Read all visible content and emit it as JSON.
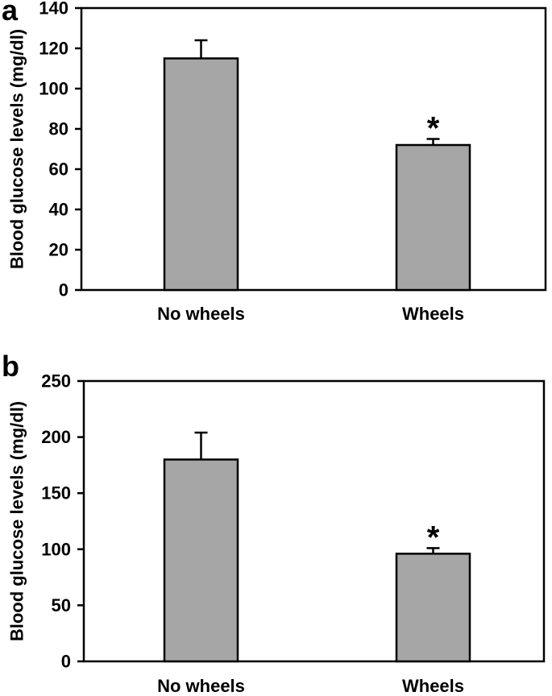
{
  "figure": {
    "background": "#ffffff",
    "panels": [
      {
        "label": "a"
      },
      {
        "label": "b"
      }
    ]
  },
  "chart_data": [
    {
      "type": "bar",
      "panel": "a",
      "title": "",
      "xlabel": "",
      "ylabel": "Blood glucose levels (mg/dl)",
      "categories": [
        "No wheels",
        "Wheels"
      ],
      "values": [
        115,
        72
      ],
      "errors_plus": [
        9,
        3
      ],
      "significance": [
        "",
        "*"
      ],
      "ylim": [
        0,
        140
      ],
      "yticks": [
        0,
        20,
        40,
        60,
        80,
        100,
        120,
        140
      ],
      "grid": false,
      "legend": false,
      "bar_fill": "#a6a6a6",
      "bar_border": "#000000",
      "axis_color": "#000000"
    },
    {
      "type": "bar",
      "panel": "b",
      "title": "",
      "xlabel": "",
      "ylabel": "Blood glucose levels (mg/dl)",
      "categories": [
        "No wheels",
        "Wheels"
      ],
      "values": [
        180,
        96
      ],
      "errors_plus": [
        24,
        5
      ],
      "significance": [
        "",
        "*"
      ],
      "ylim": [
        0,
        250
      ],
      "yticks": [
        0,
        50,
        100,
        150,
        200,
        250
      ],
      "grid": false,
      "legend": false,
      "bar_fill": "#a6a6a6",
      "bar_border": "#000000",
      "axis_color": "#000000"
    }
  ]
}
